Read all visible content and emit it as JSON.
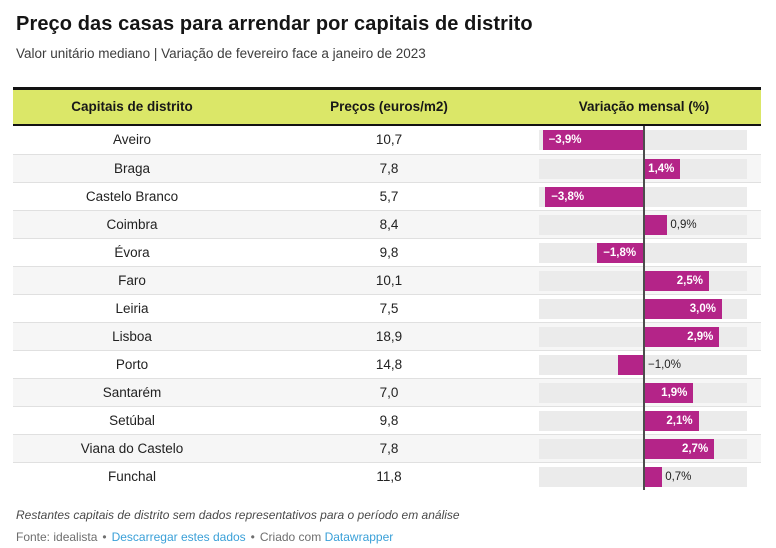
{
  "header": {
    "title": "Preço das casas para arrendar por capitais de distrito",
    "subtitle": "Valor unitário mediano | Variação de fevereiro face a janeiro de 2023"
  },
  "table": {
    "columns": [
      "Capitais de distrito",
      "Preços (euros/m2)",
      "Variação mensal (%)"
    ],
    "rows": [
      {
        "city": "Aveiro",
        "price": "10,7",
        "value": -3.9,
        "label": "−3,9%"
      },
      {
        "city": "Braga",
        "price": "7,8",
        "value": 1.4,
        "label": "1,4%"
      },
      {
        "city": "Castelo Branco",
        "price": "5,7",
        "value": -3.8,
        "label": "−3,8%"
      },
      {
        "city": "Coimbra",
        "price": "8,4",
        "value": 0.9,
        "label": "0,9%"
      },
      {
        "city": "Évora",
        "price": "9,8",
        "value": -1.8,
        "label": "−1,8%"
      },
      {
        "city": "Faro",
        "price": "10,1",
        "value": 2.5,
        "label": "2,5%"
      },
      {
        "city": "Leiria",
        "price": "7,5",
        "value": 3.0,
        "label": "3,0%"
      },
      {
        "city": "Lisboa",
        "price": "18,9",
        "value": 2.9,
        "label": "2,9%"
      },
      {
        "city": "Porto",
        "price": "14,8",
        "value": -1.0,
        "label": "−1,0%"
      },
      {
        "city": "Santarém",
        "price": "7,0",
        "value": 1.9,
        "label": "1,9%"
      },
      {
        "city": "Setúbal",
        "price": "9,8",
        "value": 2.1,
        "label": "2,1%"
      },
      {
        "city": "Viana do Castelo",
        "price": "7,8",
        "value": 2.7,
        "label": "2,7%"
      },
      {
        "city": "Funchal",
        "price": "11,8",
        "value": 0.7,
        "label": "0,7%"
      }
    ]
  },
  "footer": {
    "note": "Restantes capitais de distrito sem dados representativos para o período em análise",
    "source": "Fonte: idealista",
    "sep": "•",
    "download": "Descarregar estes dados",
    "created": "Criado com",
    "datawrapper": "Datawrapper"
  },
  "colors": {
    "bar": "#b42488",
    "header_bg": "#dbe768",
    "link": "#3aa0d8",
    "zero": "#4d4d4d"
  },
  "chart_data": {
    "type": "table",
    "title": "Preço das casas para arrendar por capitais de distrito",
    "subtitle": "Valor unitário mediano | Variação de fevereiro face a janeiro de 2023",
    "columns": [
      "Capitais de distrito",
      "Preços (euros/m2)",
      "Variação mensal (%)"
    ],
    "categories": [
      "Aveiro",
      "Braga",
      "Castelo Branco",
      "Coimbra",
      "Évora",
      "Faro",
      "Leiria",
      "Lisboa",
      "Porto",
      "Santarém",
      "Setúbal",
      "Viana do Castelo",
      "Funchal"
    ],
    "series": [
      {
        "name": "Preços (euros/m2)",
        "values": [
          10.7,
          7.8,
          5.7,
          8.4,
          9.8,
          10.1,
          7.5,
          18.9,
          14.8,
          7.0,
          9.8,
          7.8,
          11.8
        ]
      },
      {
        "name": "Variação mensal (%)",
        "values": [
          -3.9,
          1.4,
          -3.8,
          0.9,
          -1.8,
          2.5,
          3.0,
          2.9,
          -1.0,
          1.9,
          2.1,
          2.7,
          0.7
        ]
      }
    ],
    "embedded_bar_chart": {
      "type": "bar",
      "orientation": "horizontal-diverging",
      "axis_range": [
        -4.04,
        3.96
      ],
      "zero_line": true,
      "bar_color": "#b42488"
    },
    "note": "Restantes capitais de distrito sem dados representativos para o período em análise",
    "source": "Fonte: idealista"
  }
}
